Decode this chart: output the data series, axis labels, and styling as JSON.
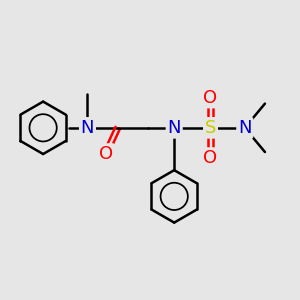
{
  "bg_color": "#e6e6e6",
  "atom_colors": {
    "C": "#000000",
    "N": "#0000cc",
    "O": "#ff0000",
    "S": "#cccc00"
  },
  "bond_color": "#000000",
  "bond_width": 1.8,
  "font_size": 13,
  "figsize": [
    3.0,
    3.0
  ],
  "dpi": 100
}
